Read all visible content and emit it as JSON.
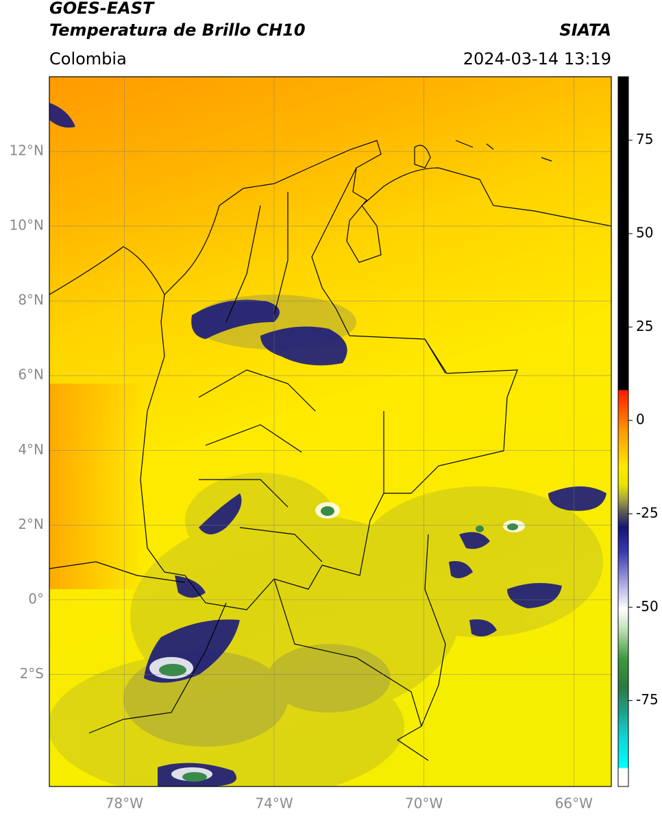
{
  "header": {
    "title_line1": "GOES-EAST",
    "title_line2": "Temperatura de Brillo CH10",
    "source": "SIATA",
    "region": "Colombia",
    "timestamp": "2024-03-14 13:19"
  },
  "chart_data": {
    "type": "map",
    "xlim": [
      -80,
      -65
    ],
    "ylim": [
      -5,
      14
    ],
    "xticks": [
      {
        "value": -78,
        "label": "78°W"
      },
      {
        "value": -74,
        "label": "74°W"
      },
      {
        "value": -70,
        "label": "70°W"
      },
      {
        "value": -66,
        "label": "66°W"
      }
    ],
    "yticks": [
      {
        "value": 12,
        "label": "12°N"
      },
      {
        "value": 10,
        "label": "10°N"
      },
      {
        "value": 8,
        "label": "8°N"
      },
      {
        "value": 6,
        "label": "6°N"
      },
      {
        "value": 4,
        "label": "4°N"
      },
      {
        "value": 2,
        "label": "2°N"
      },
      {
        "value": 0,
        "label": "0°"
      },
      {
        "value": -2,
        "label": "2°S"
      }
    ],
    "grid": true,
    "colorbar": {
      "lim": [
        -98,
        92
      ],
      "ticks": [
        75,
        50,
        25,
        0,
        -25,
        -50,
        -75
      ]
    }
  }
}
